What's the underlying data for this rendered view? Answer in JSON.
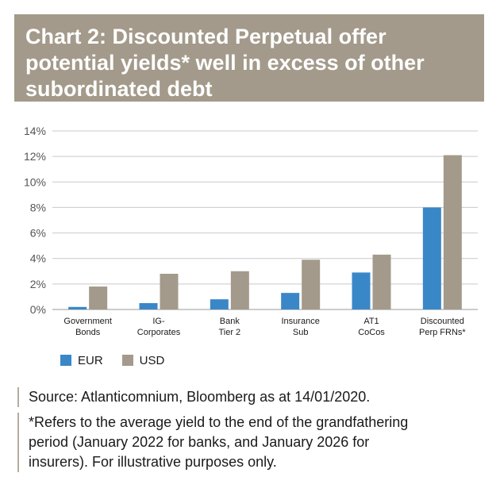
{
  "title": {
    "lines": [
      "Chart 2: Discounted Perpetual offer",
      "potential yields* well in excess of other",
      "subordinated debt"
    ]
  },
  "chart_data": {
    "type": "bar",
    "categories": [
      [
        "Government",
        "Bonds"
      ],
      [
        "IG-",
        "Corporates"
      ],
      [
        "Bank",
        "Tier 2"
      ],
      [
        "Insurance",
        "Sub"
      ],
      [
        "AT1",
        "CoCos"
      ],
      [
        "Discounted",
        "Perp FRNs*"
      ]
    ],
    "series": [
      {
        "name": "EUR",
        "color": "#3a87c8",
        "values": [
          0.2,
          0.5,
          0.8,
          1.3,
          2.9,
          8.0
        ]
      },
      {
        "name": "USD",
        "color": "#a39a8b",
        "values": [
          1.8,
          2.8,
          3.0,
          3.9,
          4.3,
          12.1
        ]
      }
    ],
    "y_ticks": [
      "0%",
      "2%",
      "4%",
      "6%",
      "8%",
      "10%",
      "12%",
      "14%"
    ],
    "ylim": [
      0,
      14
    ],
    "y_tick_step": 2,
    "grid": true,
    "legend_position": "bottom-left",
    "xlabel": "",
    "ylabel": ""
  },
  "source": "Source: Atlanticomnium, Bloomberg as at 14/01/2020.",
  "footnote": {
    "lines": [
      "*Refers to the average yield to the end of the grandfathering",
      "period (January 2022 for banks, and January 2026 for",
      "insurers). For illustrative purposes only."
    ]
  }
}
